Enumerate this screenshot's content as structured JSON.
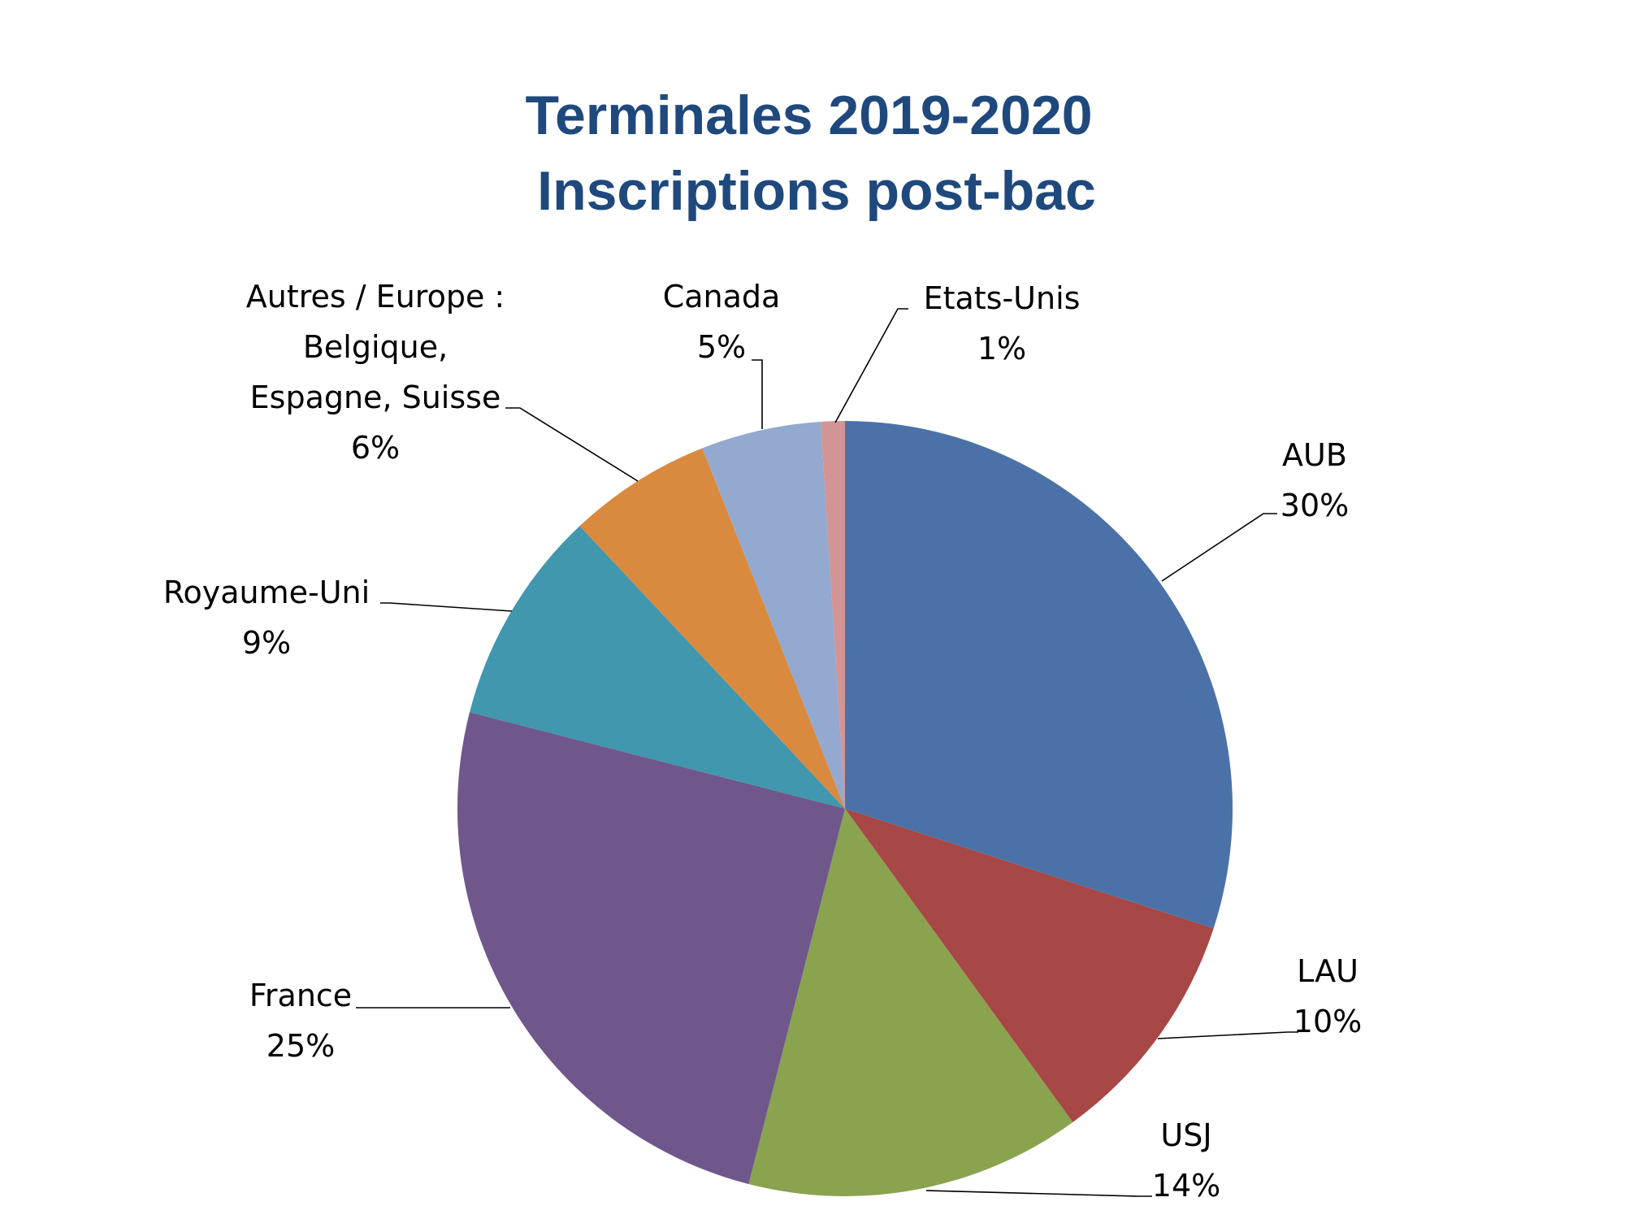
{
  "chart_data": {
    "type": "pie",
    "title": [
      "Terminales 2019-2020",
      "Inscriptions post-bac"
    ],
    "slices": [
      {
        "name": "AUB",
        "value": 30,
        "label": [
          "AUB",
          "30%"
        ],
        "color": "#4a72a8"
      },
      {
        "name": "LAU",
        "value": 10,
        "label": [
          "LAU",
          "10%"
        ],
        "color": "#a74746"
      },
      {
        "name": "USJ",
        "value": 14,
        "label": [
          "USJ",
          "14%"
        ],
        "color": "#89a34f"
      },
      {
        "name": "France",
        "value": 25,
        "label": [
          "France",
          "25%"
        ],
        "color": "#6f578c"
      },
      {
        "name": "Royaume-Uni",
        "value": 9,
        "label": [
          "Royaume-Uni",
          "9%"
        ],
        "color": "#4097ae"
      },
      {
        "name": "Autres / Europe : Belgique, Espagne, Suisse",
        "value": 6,
        "label": [
          "Autres / Europe :",
          "Belgique,",
          "Espagne, Suisse",
          "6%"
        ],
        "color": "#d98a3f"
      },
      {
        "name": "Canada",
        "value": 5,
        "label": [
          "Canada",
          "5%"
        ],
        "color": "#93a9d0"
      },
      {
        "name": "Etats-Unis",
        "value": 1,
        "label": [
          "Etats-Unis",
          "1%"
        ],
        "color": "#d29494"
      }
    ]
  }
}
